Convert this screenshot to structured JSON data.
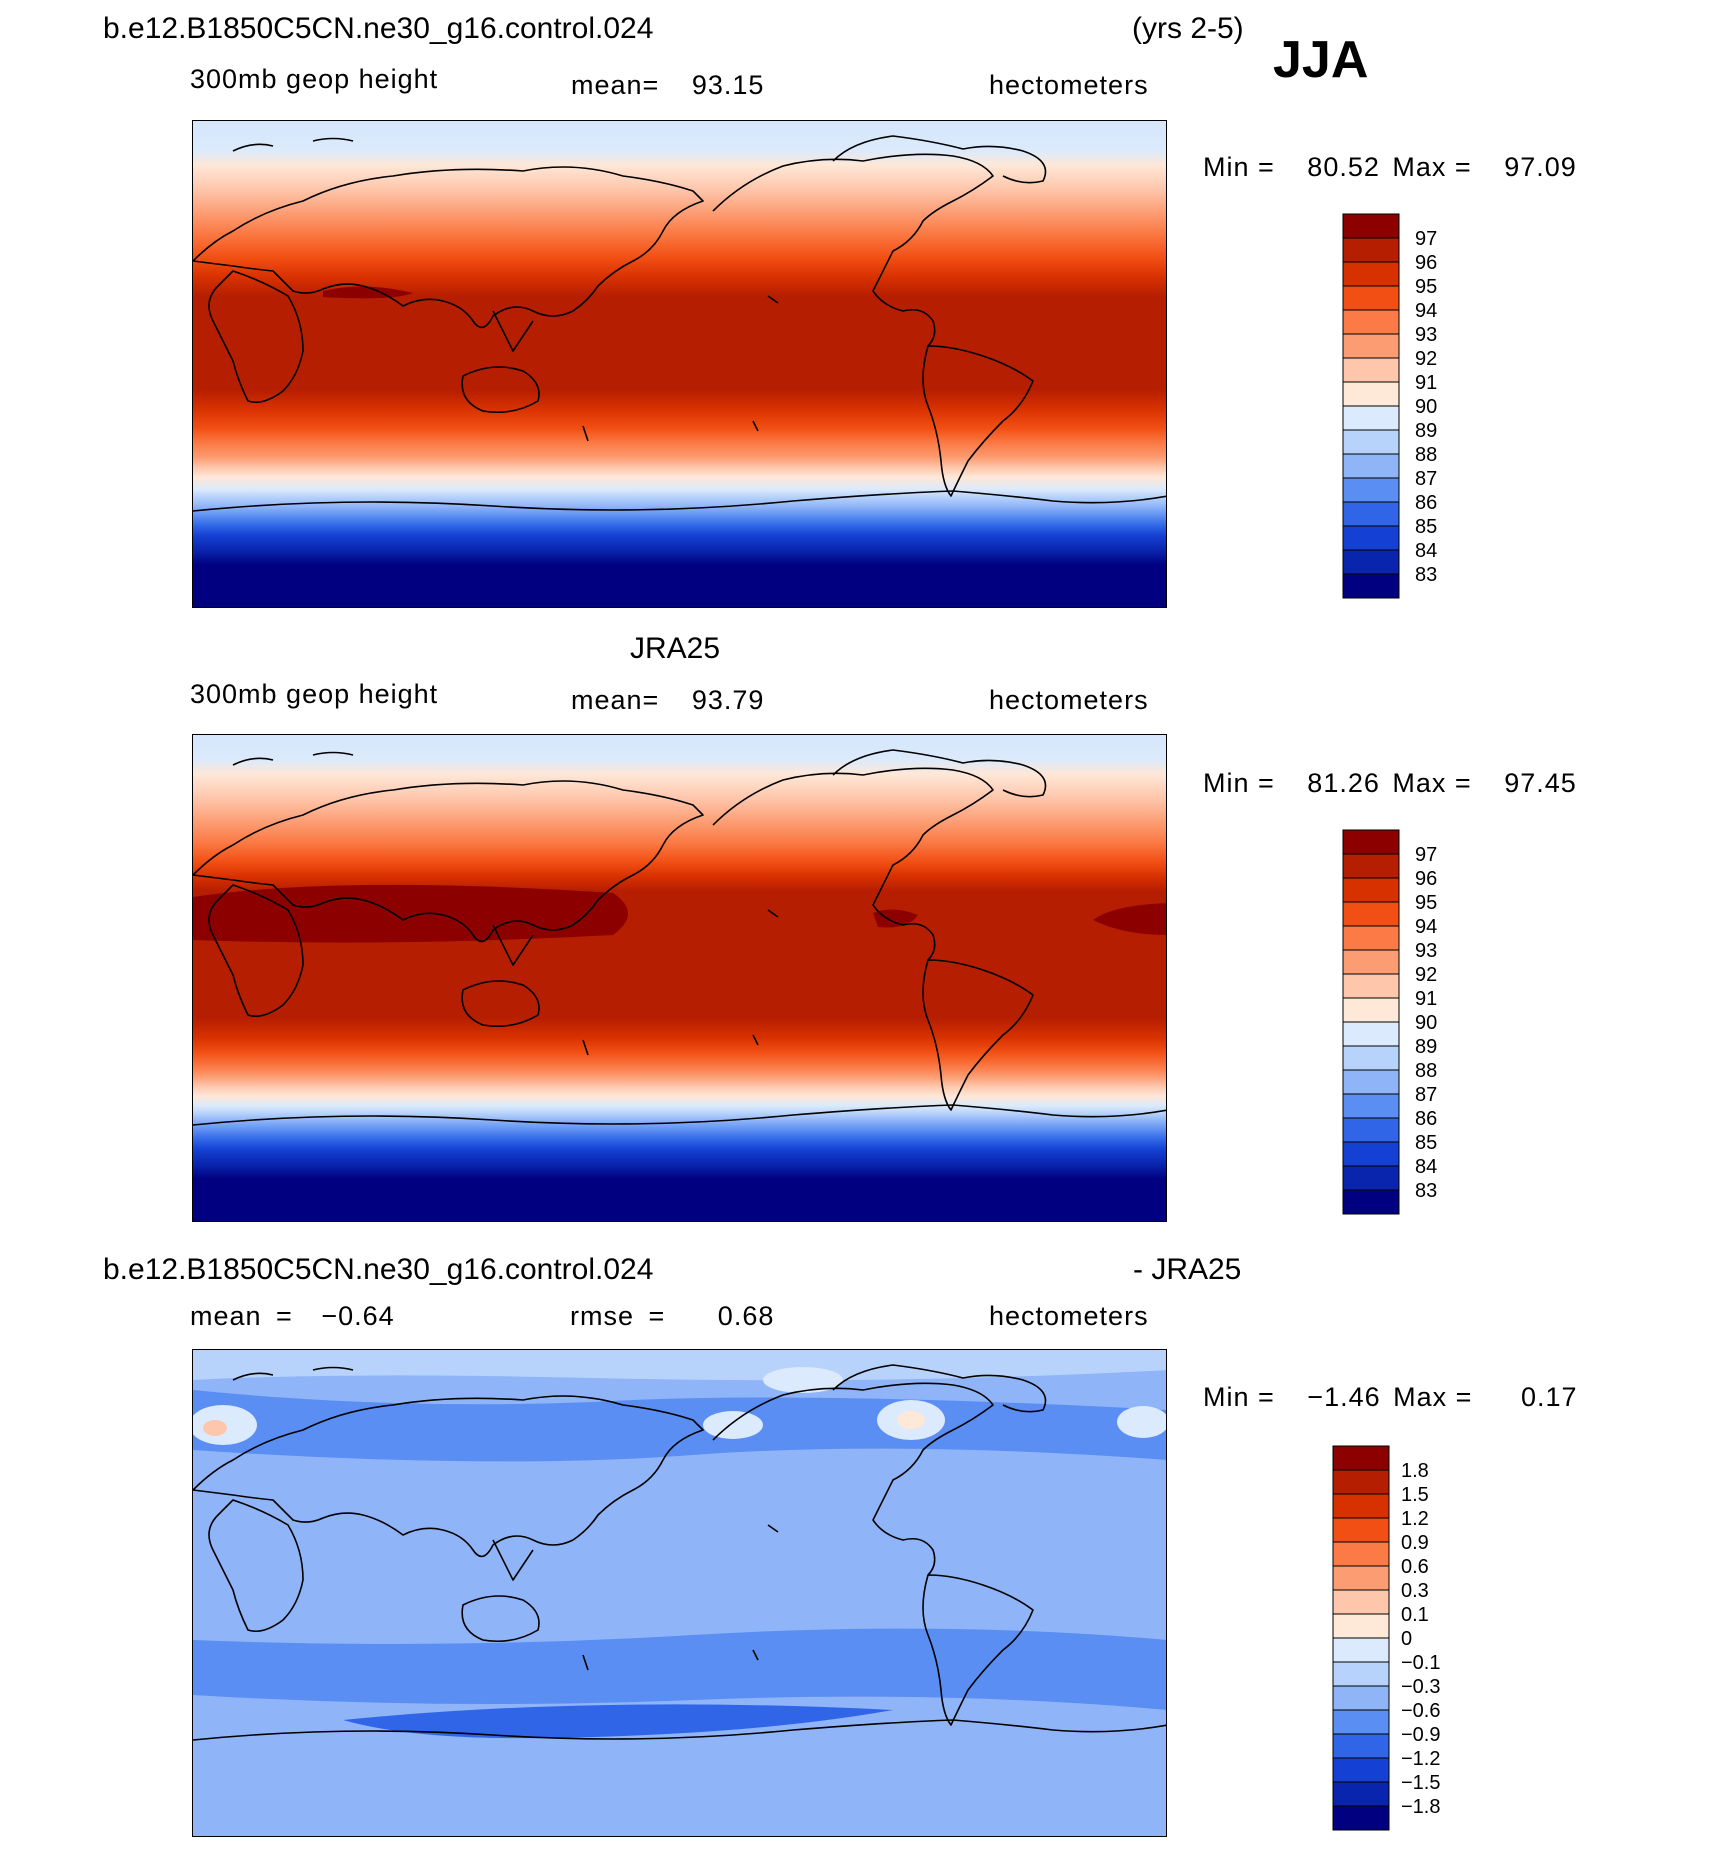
{
  "header": {
    "case_name": "b.e12.B1850C5CN.ne30_g16.control.024",
    "years": "(yrs 2-5)",
    "season": "JJA"
  },
  "panels": [
    {
      "id": "model",
      "title": "",
      "variable": "300mb geop height",
      "mean_label": "mean=",
      "mean_value": "93.15",
      "units": "hectometers",
      "min_label": "Min =",
      "min_value": "80.52",
      "max_label": "Max =",
      "max_value": "97.09",
      "colorbar_levels": [
        "97",
        "96",
        "95",
        "94",
        "93",
        "92",
        "91",
        "90",
        "89",
        "88",
        "87",
        "86",
        "85",
        "84",
        "83"
      ],
      "colorbar_colors": [
        "#8c0000",
        "#b51e00",
        "#d83100",
        "#f24f14",
        "#fb7a45",
        "#fc9c72",
        "#fec6ab",
        "#fee8d8",
        "#dbeafc",
        "#b8d3fb",
        "#8fb4f8",
        "#5a8ef2",
        "#2f65e6",
        "#1440d3",
        "#0a25ad",
        "#000080"
      ]
    },
    {
      "id": "obs",
      "title": "JRA25",
      "variable": "300mb geop height",
      "mean_label": "mean=",
      "mean_value": "93.79",
      "units": "hectometers",
      "min_label": "Min =",
      "min_value": "81.26",
      "max_label": "Max =",
      "max_value": "97.45",
      "colorbar_levels": [
        "97",
        "96",
        "95",
        "94",
        "93",
        "92",
        "91",
        "90",
        "89",
        "88",
        "87",
        "86",
        "85",
        "84",
        "83"
      ],
      "colorbar_colors": [
        "#8c0000",
        "#b51e00",
        "#d83100",
        "#f24f14",
        "#fb7a45",
        "#fc9c72",
        "#fec6ab",
        "#fee8d8",
        "#dbeafc",
        "#b8d3fb",
        "#8fb4f8",
        "#5a8ef2",
        "#2f65e6",
        "#1440d3",
        "#0a25ad",
        "#000080"
      ]
    },
    {
      "id": "diff",
      "title_left": "b.e12.B1850C5CN.ne30_g16.control.024",
      "title_right": "- JRA25",
      "mean_label": "mean =",
      "mean_value": "−0.64",
      "rmse_label": "rmse =",
      "rmse_value": "0.68",
      "units": "hectometers",
      "min_label": "Min =",
      "min_value": "−1.46",
      "max_label": "Max =",
      "max_value": "0.17",
      "colorbar_levels": [
        "1.8",
        "1.5",
        "1.2",
        "0.9",
        "0.6",
        "0.3",
        "0.1",
        "0",
        "−0.1",
        "−0.3",
        "−0.6",
        "−0.9",
        "−1.2",
        "−1.5",
        "−1.8"
      ],
      "colorbar_colors": [
        "#8c0000",
        "#b51e00",
        "#d83100",
        "#f24f14",
        "#fb7a45",
        "#fc9c72",
        "#fec6ab",
        "#fee8d8",
        "#dbeafc",
        "#b8d3fb",
        "#8fb4f8",
        "#5a8ef2",
        "#2f65e6",
        "#1440d3",
        "#0a25ad",
        "#000080"
      ]
    }
  ]
}
